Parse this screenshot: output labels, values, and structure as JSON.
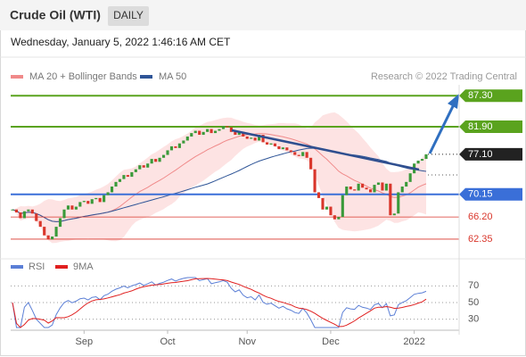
{
  "header": {
    "title": "Crude Oil (WTI)",
    "timeframe": "DAILY",
    "timestamp": "Wednesday, January 5, 2022 1:46:16 AM CET"
  },
  "chart_data": {
    "type": "candlestick",
    "legend": [
      {
        "name": "MA 20 + Bollinger Bands",
        "color": "#f08a8a"
      },
      {
        "name": "MA 50",
        "color": "#2f5597"
      }
    ],
    "credit": "Research © 2022 Trading Central",
    "up_color": "#3a9a3a",
    "down_color": "#d9362b",
    "close": [
      67.5,
      67.0,
      66.0,
      67.2,
      67.5,
      66.8,
      65.5,
      64.5,
      63.0,
      62.3,
      62.8,
      64.5,
      66.0,
      67.5,
      68.2,
      67.5,
      68.0,
      68.8,
      69.0,
      68.5,
      69.3,
      69.5,
      68.8,
      70.0,
      70.5,
      71.5,
      72.3,
      72.8,
      73.5,
      73.2,
      74.0,
      74.5,
      75.2,
      74.8,
      75.5,
      76.3,
      75.8,
      76.5,
      77.0,
      77.8,
      78.5,
      78.2,
      79.0,
      79.5,
      80.2,
      80.8,
      81.2,
      80.5,
      81.0,
      81.5,
      80.8,
      81.2,
      81.5,
      82.0,
      81.8,
      81.0,
      80.5,
      81.0,
      80.2,
      79.8,
      80.0,
      79.5,
      80.5,
      79.2,
      78.8,
      79.0,
      78.5,
      78.0,
      78.3,
      77.8,
      77.5,
      77.0,
      76.8,
      77.5,
      76.5,
      74.5,
      70.5,
      69.5,
      67.5,
      68.0,
      66.5,
      65.8,
      66.2,
      70.0,
      71.5,
      71.0,
      70.8,
      72.0,
      71.3,
      71.0,
      70.5,
      71.8,
      72.2,
      70.8,
      72.0,
      66.5,
      66.8,
      70.5,
      71.5,
      72.3,
      73.8,
      75.5,
      76.0,
      76.3,
      77.1
    ],
    "ylim": [
      59.7,
      89.2
    ],
    "xticks": [
      {
        "value": 18,
        "label": "Sep"
      },
      {
        "value": 39,
        "label": "Oct"
      },
      {
        "value": 59,
        "label": "Nov"
      },
      {
        "value": 80,
        "label": "Dec"
      },
      {
        "value": 101,
        "label": "2022"
      }
    ],
    "levels": [
      {
        "value": 87.3,
        "label": "87.30",
        "color": "#5aa31e",
        "style": "box",
        "line": "solid"
      },
      {
        "value": 81.9,
        "label": "81.90",
        "color": "#5aa31e",
        "style": "box",
        "line": "solid"
      },
      {
        "value": 77.1,
        "label": "77.10",
        "color": "#222222",
        "style": "box",
        "line": "dotted"
      },
      {
        "value": 70.15,
        "label": "70.15",
        "color": "#3a6fd8",
        "style": "box",
        "line": "solid"
      },
      {
        "value": 66.2,
        "label": "66.20",
        "color": "#d9362b",
        "style": "text",
        "line": "thin"
      },
      {
        "value": 62.35,
        "label": "62.35",
        "color": "#d9362b",
        "style": "text",
        "line": "thin"
      }
    ],
    "rsi": {
      "legend": [
        {
          "name": "RSI",
          "color": "#5b7fd6"
        },
        {
          "name": "9MA",
          "color": "#e02020"
        }
      ],
      "ylim": [
        20,
        80
      ],
      "yticks": [
        70,
        50,
        30
      ]
    }
  }
}
